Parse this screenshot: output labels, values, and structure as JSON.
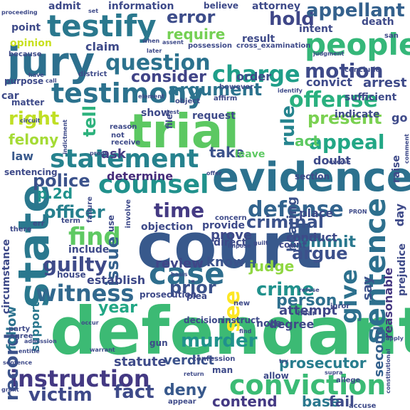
{
  "words": [
    {
      "text": "defendant",
      "color": "#3cba74"
    },
    {
      "text": "court",
      "color": "#38598c"
    },
    {
      "text": "evidence",
      "color": "#2c718e"
    },
    {
      "text": "trial",
      "color": "#5cc862"
    },
    {
      "text": "state",
      "color": "#2a788e"
    },
    {
      "text": "jury",
      "color": "#2d708e"
    },
    {
      "text": "testify",
      "color": "#2a788e"
    },
    {
      "text": "testimony",
      "color": "#2c728e"
    },
    {
      "text": "statement",
      "color": "#26828e"
    },
    {
      "text": "counsel",
      "color": "#21918c"
    },
    {
      "text": "case",
      "color": "#2e6e8e"
    },
    {
      "text": "people",
      "color": "#35b779"
    },
    {
      "text": "conviction",
      "color": "#3bbb75"
    },
    {
      "text": "instruction",
      "color": "#443983"
    },
    {
      "text": "sentence",
      "color": "#2d708e"
    },
    {
      "text": "witness",
      "color": "#31688e"
    },
    {
      "text": "charge",
      "color": "#1f9e89"
    },
    {
      "text": "question",
      "color": "#2c728e"
    },
    {
      "text": "defense",
      "color": "#32648e"
    },
    {
      "text": "find",
      "color": "#5ec962"
    },
    {
      "text": "offense",
      "color": "#2ab07f"
    },
    {
      "text": "motion",
      "color": "#3e4a89"
    },
    {
      "text": "appeal",
      "color": "#22a785"
    },
    {
      "text": "murder",
      "color": "#20928c"
    },
    {
      "text": "victim",
      "color": "#3e4989"
    },
    {
      "text": "fact",
      "color": "#3e4a89"
    },
    {
      "text": "criminal",
      "color": "#3b528b"
    },
    {
      "text": "guilty",
      "color": "#3e4a89"
    },
    {
      "text": "time",
      "color": "#443a83"
    },
    {
      "text": "give",
      "color": "#2d718e"
    },
    {
      "text": "crime",
      "color": "#21918c"
    },
    {
      "text": "record",
      "color": "#3b528b"
    },
    {
      "text": "hold",
      "color": "#3f4788"
    },
    {
      "text": "appellant",
      "color": "#34618d"
    },
    {
      "text": "right",
      "color": "#c0df25"
    },
    {
      "text": "police",
      "color": "#3b528b"
    },
    {
      "text": "error",
      "color": "#3d4d8a"
    },
    {
      "text": "argument",
      "color": "#2c738e"
    },
    {
      "text": "officer",
      "color": "#27808e"
    },
    {
      "text": "prior",
      "color": "#3b528b"
    },
    {
      "text": "argue",
      "color": "#3c508b"
    },
    {
      "text": "issue",
      "color": "#34618d"
    },
    {
      "text": "see",
      "color": "#fde725"
    },
    {
      "text": "deny",
      "color": "#38598c"
    },
    {
      "text": "present",
      "color": "#7ad151"
    },
    {
      "text": "tell",
      "color": "#2db27d"
    },
    {
      "text": "rule",
      "color": "#25848e"
    },
    {
      "text": "consider",
      "color": "#414487"
    },
    {
      "text": "require",
      "color": "#75d054"
    },
    {
      "text": "commit",
      "color": "#2a788e"
    },
    {
      "text": "person",
      "color": "#2e6f8e"
    },
    {
      "text": "prosecutor",
      "color": "#287d8e"
    },
    {
      "text": "year",
      "color": "#22a785"
    },
    {
      "text": "contend",
      "color": "#443983"
    },
    {
      "text": "review",
      "color": "#404688"
    },
    {
      "text": "know",
      "color": "#3b528b"
    },
    {
      "text": "judge",
      "color": "#90d743"
    },
    {
      "text": "act",
      "color": "#5ec962"
    },
    {
      "text": "p.2d",
      "color": "#20928c"
    },
    {
      "text": "felony",
      "color": "#a5db36"
    },
    {
      "text": "take",
      "color": "#3b528b"
    },
    {
      "text": "prove",
      "color": "#3e4989"
    },
    {
      "text": "statute",
      "color": "#3e4a89"
    },
    {
      "text": "verdict",
      "color": "#3b528b"
    },
    {
      "text": "base",
      "color": "#2a788e"
    },
    {
      "text": "fail",
      "color": "#3e4a89"
    },
    {
      "text": "second",
      "color": "#34618d"
    },
    {
      "text": "follow",
      "color": "#2c728e"
    },
    {
      "text": "support",
      "color": "#2a788e"
    },
    {
      "text": "reasonable",
      "color": "#453781"
    },
    {
      "text": "hearing",
      "color": "#3b528b"
    },
    {
      "text": "attempt",
      "color": "#3f4788"
    },
    {
      "text": "say",
      "color": "#3b528b"
    },
    {
      "text": "degree",
      "color": "#3f4788"
    },
    {
      "text": "establish",
      "color": "#3e4989"
    },
    {
      "text": "law",
      "color": "#38598c"
    },
    {
      "text": "ask",
      "color": "#433e85"
    },
    {
      "text": "determine",
      "color": "#472d7b"
    },
    {
      "text": "conduct",
      "color": "#3e4a89"
    },
    {
      "text": "claim",
      "color": "#3e4a89"
    },
    {
      "text": "convict",
      "color": "#3e4a89"
    },
    {
      "text": "arrest",
      "color": "#3e4a89"
    },
    {
      "text": "sufficient",
      "color": "#3e4a89"
    },
    {
      "text": "doubt",
      "color": "#3e4a89"
    },
    {
      "text": "go",
      "color": "#3e4a89"
    },
    {
      "text": "order",
      "color": "#3e4a89"
    },
    {
      "text": "leave",
      "color": "#5ec962"
    },
    {
      "text": "place",
      "color": "#3e4a89"
    },
    {
      "text": "indicate",
      "color": "#3e4a89"
    },
    {
      "text": "request",
      "color": "#3e4a89"
    },
    {
      "text": "show",
      "color": "#3e4a89"
    },
    {
      "text": "note",
      "color": "#3e4a89"
    },
    {
      "text": "objection",
      "color": "#3e4a89"
    },
    {
      "text": "direct",
      "color": "#3e4a89"
    },
    {
      "text": "provide",
      "color": "#3e4a89"
    },
    {
      "text": "include",
      "color": "#3e4a89"
    },
    {
      "text": "information",
      "color": "#3e4a89"
    },
    {
      "text": "admit",
      "color": "#3e4a89"
    },
    {
      "text": "point",
      "color": "#3e4a89"
    },
    {
      "text": "opinion",
      "color": "#c8e020"
    },
    {
      "text": "attorney",
      "color": "#3e4a89"
    },
    {
      "text": "intent",
      "color": "#3e4a89"
    },
    {
      "text": "death",
      "color": "#3e4a89"
    },
    {
      "text": "result",
      "color": "#3e4a89"
    },
    {
      "text": "decision",
      "color": "#3e4a89"
    },
    {
      "text": "instruct",
      "color": "#3e4a89"
    },
    {
      "text": "prosecution",
      "color": "#3e4a89"
    },
    {
      "text": "plea",
      "color": "#3e4a89"
    },
    {
      "text": "gun",
      "color": "#3e4a89"
    },
    {
      "text": "man",
      "color": "#3e4a89"
    },
    {
      "text": "confession",
      "color": "#3e4a89"
    },
    {
      "text": "allow",
      "color": "#3e4a89"
    },
    {
      "text": "appear",
      "color": "#3e4a89"
    },
    {
      "text": "accuse",
      "color": "#3e4a89"
    },
    {
      "text": "allege",
      "color": "#3e4a89"
    },
    {
      "text": "circumstance",
      "color": "#3e4a89"
    },
    {
      "text": "sentencing",
      "color": "#3e4a89"
    },
    {
      "text": "car",
      "color": "#3e4a89"
    },
    {
      "text": "purpose",
      "color": "#3e4a89"
    },
    {
      "text": "matter",
      "color": "#3e4a89"
    },
    {
      "text": "because",
      "color": "#3e4a89"
    },
    {
      "text": "believe",
      "color": "#3e4a89"
    },
    {
      "text": "prejudice",
      "color": "#3e4a89"
    },
    {
      "text": "day",
      "color": "#3e4a89"
    },
    {
      "text": "raise",
      "color": "#3e4a89"
    },
    {
      "text": "section",
      "color": "#3e4a89"
    },
    {
      "text": "concern",
      "color": "#3e4a89"
    },
    {
      "text": "count",
      "color": "#3e4a89"
    },
    {
      "text": "house",
      "color": "#3e4a89"
    },
    {
      "text": "there",
      "color": "#3e4a89"
    },
    {
      "text": "juror",
      "color": "#3e4a89"
    },
    {
      "text": "hear",
      "color": "#3e4a89"
    },
    {
      "text": "new",
      "color": "#3e4a89"
    },
    {
      "text": "party",
      "color": "#3e4a89"
    },
    {
      "text": "agree",
      "color": "#3e4a89"
    },
    {
      "text": "term",
      "color": "#3e4a89"
    },
    {
      "text": "use",
      "color": "#3e4a89"
    },
    {
      "text": "file",
      "color": "#3e4a89"
    },
    {
      "text": "receive",
      "color": "#3e4a89"
    },
    {
      "text": "reason",
      "color": "#3e4a89"
    },
    {
      "text": "not",
      "color": "#3e4a89"
    },
    {
      "text": "object",
      "color": "#3e4a89"
    },
    {
      "text": "affirm",
      "color": "#3e4a89"
    },
    {
      "text": "however",
      "color": "#3e4a89"
    },
    {
      "text": "district",
      "color": "#3e4a89"
    },
    {
      "text": "possession",
      "color": "#3e4a89"
    },
    {
      "text": "cross_examination",
      "color": "#3e4a89"
    },
    {
      "text": "conclude",
      "color": "#3e4a89"
    },
    {
      "text": "judgment",
      "color": "#3e4a89"
    },
    {
      "text": "san",
      "color": "#3e4a89"
    },
    {
      "text": "set",
      "color": "#3e4a89"
    },
    {
      "text": "when",
      "color": "#3e4a89"
    },
    {
      "text": "assent",
      "color": "#3e4a89"
    },
    {
      "text": "later",
      "color": "#3e4a89"
    },
    {
      "text": "have",
      "color": "#3e4a89"
    },
    {
      "text": "call",
      "color": "#3e4a89"
    },
    {
      "text": "identify",
      "color": "#3e4a89"
    },
    {
      "text": "element",
      "color": "#3e4a89"
    },
    {
      "text": "test",
      "color": "#3e4a89"
    },
    {
      "text": "circuit",
      "color": "#3e4a89"
    },
    {
      "text": "indictment",
      "color": "#3e4a89"
    },
    {
      "text": "proof",
      "color": "#3e4a89"
    },
    {
      "text": "failure",
      "color": "#3e4a89"
    },
    {
      "text": "offer",
      "color": "#3e4a89"
    },
    {
      "text": "involve",
      "color": "#3e4a89"
    },
    {
      "text": "guilt",
      "color": "#3e4a89"
    },
    {
      "text": "reverse",
      "color": "#3e4a89"
    },
    {
      "text": "comment",
      "color": "#3e4a89"
    },
    {
      "text": "PRON",
      "color": "#3e4a89"
    },
    {
      "text": "err",
      "color": "#3e4a89"
    },
    {
      "text": "impose",
      "color": "#3e4a89"
    },
    {
      "text": "refuse",
      "color": "#3e4a89"
    },
    {
      "text": "occur",
      "color": "#3e4a89"
    },
    {
      "text": "basis",
      "color": "#3e4a89"
    },
    {
      "text": "warrant",
      "color": "#3e4a89"
    },
    {
      "text": "find",
      "color": "#3e4a89"
    },
    {
      "text": "try",
      "color": "#3e4a89"
    },
    {
      "text": "supra",
      "color": "#3e4a89"
    },
    {
      "text": "return",
      "color": "#3e4a89"
    },
    {
      "text": "constitutional",
      "color": "#3e4a89"
    },
    {
      "text": "apply",
      "color": "#3e4a89"
    },
    {
      "text": "admission",
      "color": "#3e4a89"
    },
    {
      "text": "entitle",
      "color": "#3e4a89"
    },
    {
      "text": "sentence",
      "color": "#3e4a89"
    },
    {
      "text": "grant",
      "color": "#3e4a89"
    },
    {
      "text": "proceeding",
      "color": "#3e4a89"
    }
  ]
}
